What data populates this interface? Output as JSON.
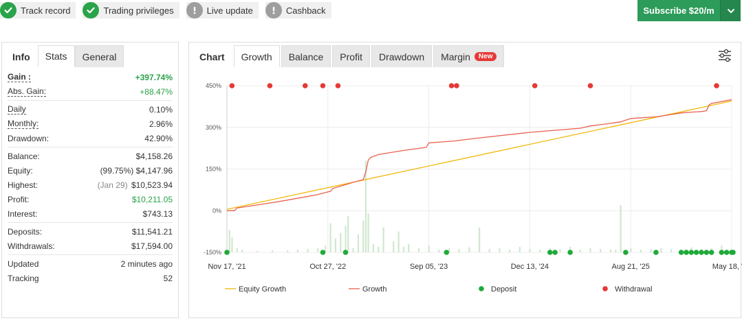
{
  "badges": [
    {
      "label": "Track record",
      "icon": "check-circle-icon",
      "status": "ok"
    },
    {
      "label": "Trading privileges",
      "icon": "check-circle-icon",
      "status": "ok"
    },
    {
      "label": "Live update",
      "icon": "exclamation-circle-icon",
      "status": "off"
    },
    {
      "label": "Cashback",
      "icon": "exclamation-circle-icon",
      "status": "off"
    }
  ],
  "subscribe": {
    "label": "Subscribe $20/m",
    "icon": "chevron-down-icon",
    "color": "#2d9b5a"
  },
  "left_tabs": [
    "Info",
    "Stats",
    "General"
  ],
  "stats": {
    "gain": {
      "label": "Gain :",
      "value": "+397.74%"
    },
    "abs_gain": {
      "label": "Abs. Gain:",
      "value": "+88.47%"
    },
    "daily": {
      "label": "Daily",
      "value": "0.10%"
    },
    "monthly": {
      "label": "Monthly:",
      "value": "2.96%"
    },
    "drawdown": {
      "label": "Drawdown:",
      "value": "42.90%"
    },
    "balance": {
      "label": "Balance:",
      "value": "$4,158.26"
    },
    "equity": {
      "label": "Equity:",
      "note": "(99.75%)",
      "value": "$4,147.96"
    },
    "highest": {
      "label": "Highest:",
      "note": "(Jan 29)",
      "value": "$10,523.94"
    },
    "profit": {
      "label": "Profit:",
      "value": "$10,211.05"
    },
    "interest": {
      "label": "Interest:",
      "value": "$743.13"
    },
    "deposits": {
      "label": "Deposits:",
      "value": "$11,541.21"
    },
    "withdrawals": {
      "label": "Withdrawals:",
      "value": "$17,594.00"
    },
    "updated": {
      "label": "Updated",
      "value": "2 minutes ago"
    },
    "tracking": {
      "label": "Tracking",
      "value": "52"
    }
  },
  "chart_tabs": {
    "title": "Chart",
    "tabs": [
      "Growth",
      "Balance",
      "Profit",
      "Drawdown",
      "Margin"
    ],
    "new_badge": "New",
    "settings_icon": "sliders-icon"
  },
  "chart_data": {
    "type": "line",
    "ytick_labels": [
      "450%",
      "300%",
      "150%",
      "0%",
      "-150%"
    ],
    "yticks": [
      450,
      300,
      150,
      0,
      -150
    ],
    "ylim": [
      -150,
      450
    ],
    "xlim": [
      0,
      100
    ],
    "xtick_labels": [
      "Nov 17, '21",
      "Oct 27, '22",
      "Sep 05, '23",
      "Dec 13, '24",
      "Aug 21, '25",
      "May 18, '26"
    ],
    "xtick_positions": [
      0,
      20,
      40,
      60,
      80,
      100
    ],
    "grid": true,
    "legend_position": "bottom",
    "series": [
      {
        "name": "Equity Growth",
        "color": "#f2b705",
        "x": [
          0,
          100
        ],
        "y": [
          5,
          395
        ]
      },
      {
        "name": "Growth",
        "color": "#e8604c",
        "x": [
          0,
          1.5,
          2,
          5,
          10,
          15,
          18,
          20.5,
          21,
          25,
          27,
          27.5,
          28,
          28.5,
          30,
          35,
          39.5,
          40,
          45,
          50,
          60,
          70,
          72,
          75,
          78,
          80,
          85,
          90,
          92,
          94,
          95,
          95.5,
          96,
          100
        ],
        "y": [
          0,
          0,
          10,
          18,
          32,
          48,
          58,
          70,
          80,
          102,
          112,
          140,
          182,
          192,
          202,
          217,
          228,
          244,
          251,
          262,
          282,
          297,
          305,
          312,
          320,
          332,
          338,
          352,
          355,
          357,
          360,
          380,
          386,
          400
        ]
      },
      {
        "name": "Deposit",
        "color": "#1faa3a",
        "type": "scatter",
        "x": [
          0,
          19,
          23.5,
          43.5,
          64,
          65,
          68,
          79,
          85,
          90,
          91,
          92,
          93,
          94,
          95,
          96,
          98,
          99,
          100,
          101
        ],
        "y": [
          -150,
          -150,
          -150,
          -150,
          -150,
          -150,
          -150,
          -150,
          -150,
          -150,
          -150,
          -150,
          -150,
          -150,
          -150,
          -150,
          -150,
          -150,
          -150,
          -150
        ]
      },
      {
        "name": "Withdrawal",
        "color": "#e53935",
        "type": "scatter",
        "x": [
          1,
          8.5,
          15.5,
          19,
          22,
          44.5,
          45.5,
          61,
          72,
          97
        ],
        "y": [
          450,
          450,
          450,
          450,
          450,
          450,
          450,
          450,
          450,
          450
        ]
      }
    ],
    "daily_bars": {
      "color": "#cfe8cf",
      "x": [
        0.5,
        1,
        2,
        3,
        6,
        9,
        12,
        14,
        16,
        18,
        19.5,
        20.5,
        21.5,
        22.5,
        23.5,
        24,
        25,
        26,
        27,
        27.5,
        28,
        29,
        30,
        31,
        33,
        34,
        35,
        36,
        38,
        40,
        42,
        44,
        46,
        48,
        50,
        52,
        54,
        56,
        58,
        60,
        62,
        64,
        66,
        68,
        70,
        72,
        74,
        76,
        77,
        78,
        80,
        82,
        84,
        86,
        88,
        90,
        92,
        94,
        96,
        98
      ],
      "y": [
        -70,
        -95,
        -135,
        -140,
        -145,
        -143,
        -142,
        -140,
        -138,
        -135,
        -125,
        -45,
        -100,
        -80,
        -55,
        -20,
        -135,
        -85,
        -35,
        180,
        -10,
        -120,
        -130,
        -60,
        -110,
        -75,
        -130,
        -120,
        -135,
        -125,
        -140,
        -135,
        -138,
        -132,
        -60,
        -138,
        -135,
        -140,
        -130,
        -138,
        -140,
        -135,
        -138,
        -130,
        -140,
        -135,
        -138,
        -140,
        -140,
        20,
        -135,
        -140,
        -138,
        -135,
        -138,
        -140,
        -132,
        -138,
        -135,
        -125
      ]
    }
  }
}
